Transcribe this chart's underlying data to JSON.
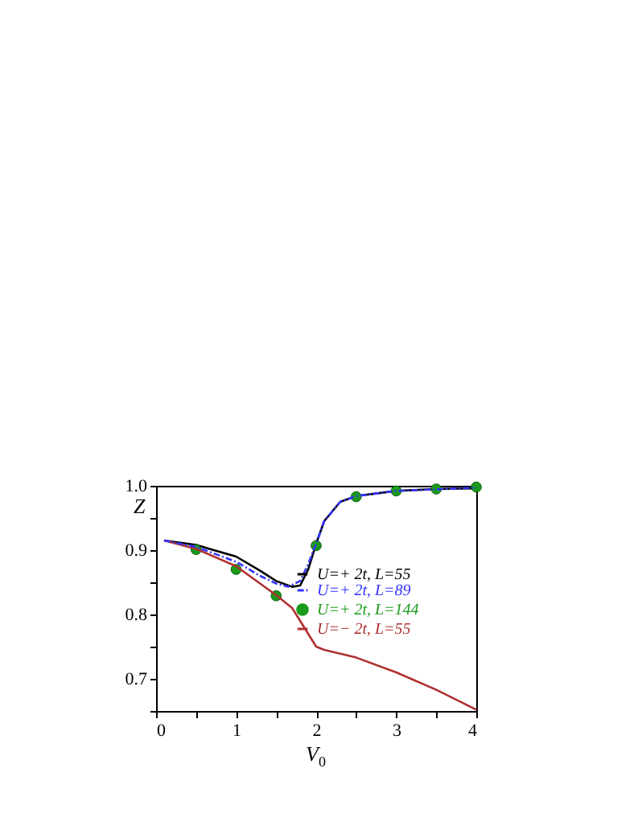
{
  "chart_data": {
    "type": "line",
    "xlabel": "V$_{0}$",
    "ylabel": "Z",
    "xlim": [
      0,
      4
    ],
    "ylim": [
      0.65,
      1.0
    ],
    "xticks": [
      0,
      {
        "value": 0.5,
        "label": null
      },
      1,
      {
        "value": 1.5,
        "label": null
      },
      2,
      {
        "value": 2.5,
        "label": null
      },
      3,
      {
        "value": 3.5,
        "label": null
      },
      4
    ],
    "yticks": [
      {
        "value": 0.65,
        "label": null
      },
      0.7,
      {
        "value": 0.75,
        "label": null
      },
      0.8,
      {
        "value": 0.85,
        "label": null
      },
      0.9,
      {
        "value": 0.95,
        "label": null
      },
      {
        "value": 1.0,
        "label": "1.0"
      }
    ],
    "legend": "right",
    "grid": false,
    "series": [
      {
        "name": "U=+ 2t, L=55",
        "type": "line",
        "line_style": "solid",
        "color": "#000000",
        "x": [
          0.1,
          0.5,
          1.0,
          1.3,
          1.5,
          1.7,
          1.8,
          1.9,
          2.0,
          2.1,
          2.3,
          2.5,
          3.0,
          3.5,
          4.0
        ],
        "values": [
          0.915,
          0.908,
          0.89,
          0.868,
          0.852,
          0.843,
          0.845,
          0.87,
          0.91,
          0.945,
          0.975,
          0.984,
          0.992,
          0.995,
          0.996
        ]
      },
      {
        "name": "U=+ 2t, L=89",
        "type": "line",
        "line_style": "dashed",
        "color": "#3333ff",
        "x": [
          0.1,
          0.5,
          1.0,
          1.3,
          1.5,
          1.65,
          1.8,
          1.9,
          2.0,
          2.1,
          2.3,
          2.5,
          3.0,
          4.0
        ],
        "values": [
          0.915,
          0.905,
          0.882,
          0.86,
          0.848,
          0.843,
          0.852,
          0.878,
          0.91,
          0.945,
          0.975,
          0.984,
          0.992,
          0.997
        ]
      },
      {
        "name": "U=+ 2t, L=144",
        "type": "scatter",
        "marker": "circle",
        "color": "#1a9a1a",
        "x": [
          0.5,
          1.0,
          1.5,
          2.0,
          2.5,
          3.0,
          3.5,
          4.0
        ],
        "values": [
          0.901,
          0.87,
          0.829,
          0.907,
          0.983,
          0.992,
          0.995,
          0.998
        ]
      },
      {
        "name": "U=− 2t, L=55",
        "type": "line",
        "line_style": "solid",
        "color": "#b03030",
        "x": [
          0.1,
          0.5,
          1.0,
          1.5,
          1.7,
          1.8,
          1.9,
          2.0,
          2.1,
          2.5,
          3.0,
          3.5,
          4.0
        ],
        "values": [
          0.915,
          0.902,
          0.875,
          0.83,
          0.81,
          0.79,
          0.77,
          0.75,
          0.745,
          0.733,
          0.71,
          0.683,
          0.652
        ]
      }
    ]
  }
}
